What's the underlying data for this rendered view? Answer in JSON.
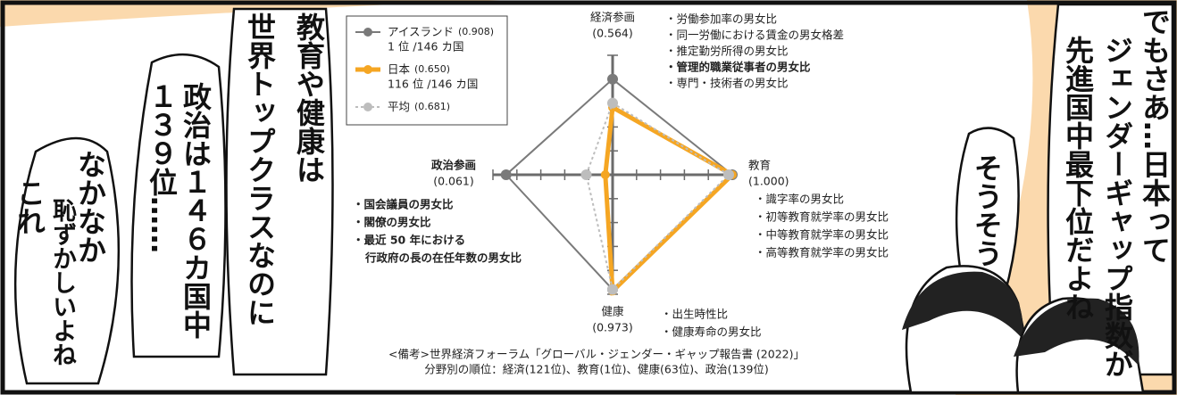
{
  "chart_data": {
    "type": "radar",
    "categories": [
      "経済参画",
      "教育",
      "健康",
      "政治参画"
    ],
    "category_bold": [
      false,
      false,
      false,
      true
    ],
    "rlim": [
      0,
      1
    ],
    "rticks": [
      0,
      0.2,
      0.4,
      0.6,
      0.8,
      1
    ],
    "series": [
      {
        "name": "アイスランド",
        "score_label": "(0.908)",
        "rank": "1 位 /146 カ国",
        "color": "#7a7a7a",
        "values": [
          0.8,
          1.0,
          0.96,
          0.89
        ]
      },
      {
        "name": "日本",
        "score_label": "(0.650)",
        "rank": "116 位 /146 カ国",
        "color": "#f5a623",
        "values": [
          0.564,
          1.0,
          0.973,
          0.061
        ],
        "value_labels": [
          "(0.564)",
          "(1.000)",
          "(0.973)",
          "(0.061)"
        ]
      },
      {
        "name": "平均",
        "score_label": "(0.681)",
        "color": "#bdbdbd",
        "dashed": true,
        "values": [
          0.6,
          0.97,
          0.96,
          0.22
        ]
      }
    ],
    "notes": [
      [
        {
          "text": "・労働参加率の男女比",
          "bold": false
        },
        {
          "text": "・同一労働における賃金の男女格差",
          "bold": false
        },
        {
          "text": "・推定勤労所得の男女比",
          "bold": false
        },
        {
          "text": "・管理的職業従事者の男女比",
          "bold": true
        },
        {
          "text": "・専門・技術者の男女比",
          "bold": false
        }
      ],
      [
        {
          "text": "・識字率の男女比",
          "bold": false
        },
        {
          "text": "・初等教育就学率の男女比",
          "bold": false
        },
        {
          "text": "・中等教育就学率の男女比",
          "bold": false
        },
        {
          "text": "・高等教育就学率の男女比",
          "bold": false
        }
      ],
      [
        {
          "text": "・出生時性比",
          "bold": false
        },
        {
          "text": "・健康寿命の男女比",
          "bold": false
        }
      ],
      [
        {
          "text": "・国会議員の男女比",
          "bold": true
        },
        {
          "text": "・閣僚の男女比",
          "bold": true
        },
        {
          "text": "・最近 50 年における",
          "bold": true
        },
        {
          "text": "行政府の長の在任年数の男女比",
          "bold": true
        }
      ]
    ],
    "source": [
      "<備考>世界経済フォーラム「グローバル・ジェンダー・ギャップ報告書 (2022)」",
      "分野別の順位：経済(121位)、教育(1位)、健康(63位)、政治(139位)"
    ]
  },
  "bubbles": [
    {
      "lines": [
        "教育や健康は",
        "世界トップクラスなのに"
      ]
    },
    {
      "lines": [
        "政治は１４６カ国中",
        "１３９位……"
      ]
    },
    {
      "lines": [
        "なかなか",
        "恥ずかしいよね",
        "これ"
      ]
    },
    {
      "lines": [
        "でもさあ…日本って",
        "ジェンダーギャップ指数が",
        "先進国中最下位だよね"
      ]
    },
    {
      "lines": [
        "そうそう"
      ]
    }
  ]
}
